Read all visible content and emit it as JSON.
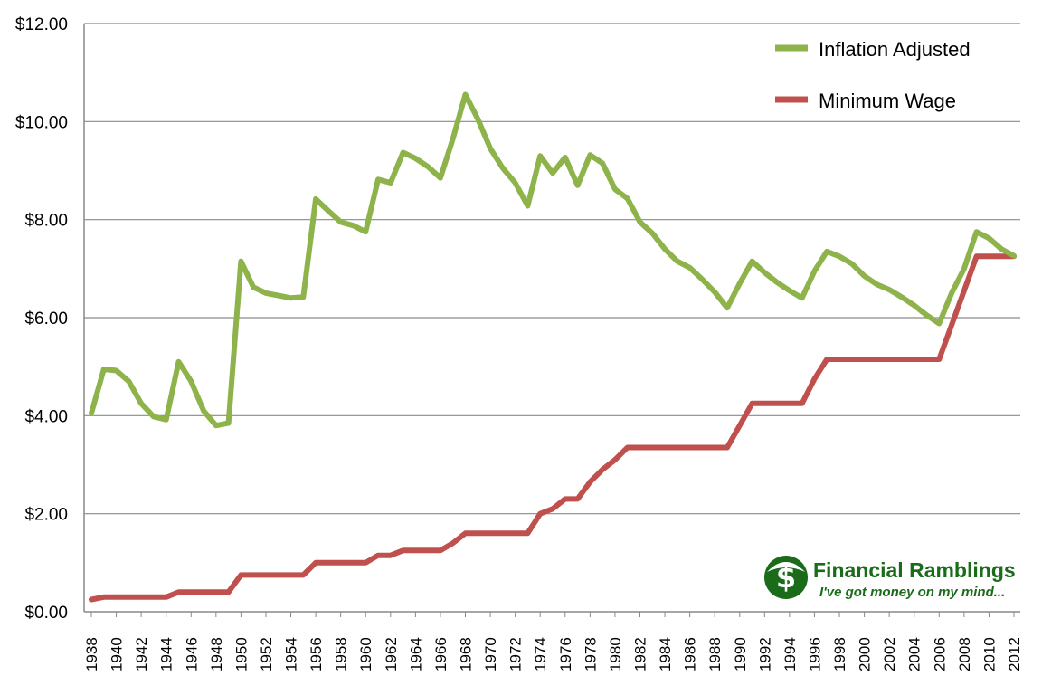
{
  "chart_data": {
    "type": "line",
    "title": "",
    "xlabel": "",
    "ylabel": "",
    "ylim": [
      0,
      12
    ],
    "yticks": [
      "$0.00",
      "$2.00",
      "$4.00",
      "$6.00",
      "$8.00",
      "$10.00",
      "$12.00"
    ],
    "ytick_values": [
      0,
      2,
      4,
      6,
      8,
      10,
      12
    ],
    "xticks": [
      "1938",
      "1940",
      "1942",
      "1944",
      "1946",
      "1948",
      "1950",
      "1952",
      "1954",
      "1956",
      "1958",
      "1960",
      "1962",
      "1964",
      "1966",
      "1968",
      "1970",
      "1972",
      "1974",
      "1976",
      "1978",
      "1980",
      "1982",
      "1984",
      "1986",
      "1988",
      "1990",
      "1992",
      "1994",
      "1996",
      "1998",
      "2000",
      "2002",
      "2004",
      "2006",
      "2008",
      "2010",
      "2012"
    ],
    "legend_position": "top-right",
    "x": [
      1938,
      1939,
      1940,
      1941,
      1942,
      1943,
      1944,
      1945,
      1946,
      1947,
      1948,
      1949,
      1950,
      1951,
      1952,
      1953,
      1954,
      1955,
      1956,
      1957,
      1958,
      1959,
      1960,
      1961,
      1962,
      1963,
      1964,
      1965,
      1966,
      1967,
      1968,
      1969,
      1970,
      1971,
      1972,
      1973,
      1974,
      1975,
      1976,
      1977,
      1978,
      1979,
      1980,
      1981,
      1982,
      1983,
      1984,
      1985,
      1986,
      1987,
      1988,
      1989,
      1990,
      1991,
      1992,
      1993,
      1994,
      1995,
      1996,
      1997,
      1998,
      1999,
      2000,
      2001,
      2002,
      2003,
      2004,
      2005,
      2006,
      2007,
      2008,
      2009,
      2010,
      2011,
      2012
    ],
    "series": [
      {
        "name": "Inflation Adjusted",
        "color": "#8db34a",
        "values": [
          4.05,
          4.95,
          4.92,
          4.7,
          4.25,
          3.98,
          3.92,
          5.1,
          4.7,
          4.1,
          3.8,
          3.85,
          7.15,
          6.62,
          6.5,
          6.45,
          6.4,
          6.42,
          8.42,
          8.18,
          7.95,
          7.88,
          7.75,
          8.82,
          8.75,
          9.37,
          9.25,
          9.08,
          8.85,
          9.65,
          10.55,
          10.05,
          9.45,
          9.05,
          8.75,
          8.28,
          9.3,
          8.95,
          9.27,
          8.7,
          9.32,
          9.15,
          8.62,
          8.43,
          7.95,
          7.72,
          7.4,
          7.15,
          7.02,
          6.78,
          6.52,
          6.2,
          6.7,
          7.15,
          6.92,
          6.72,
          6.55,
          6.4,
          6.95,
          7.35,
          7.25,
          7.1,
          6.85,
          6.68,
          6.57,
          6.42,
          6.25,
          6.05,
          5.88,
          6.5,
          7.0,
          7.75,
          7.62,
          7.4,
          7.26
        ]
      },
      {
        "name": "Minimum Wage",
        "color": "#c0504d",
        "values": [
          0.25,
          0.3,
          0.3,
          0.3,
          0.3,
          0.3,
          0.3,
          0.4,
          0.4,
          0.4,
          0.4,
          0.4,
          0.75,
          0.75,
          0.75,
          0.75,
          0.75,
          0.75,
          1.0,
          1.0,
          1.0,
          1.0,
          1.0,
          1.15,
          1.15,
          1.25,
          1.25,
          1.25,
          1.25,
          1.4,
          1.6,
          1.6,
          1.6,
          1.6,
          1.6,
          1.6,
          2.0,
          2.1,
          2.3,
          2.3,
          2.65,
          2.9,
          3.1,
          3.35,
          3.35,
          3.35,
          3.35,
          3.35,
          3.35,
          3.35,
          3.35,
          3.35,
          3.8,
          4.25,
          4.25,
          4.25,
          4.25,
          4.25,
          4.75,
          5.15,
          5.15,
          5.15,
          5.15,
          5.15,
          5.15,
          5.15,
          5.15,
          5.15,
          5.15,
          5.85,
          6.55,
          7.25,
          7.25,
          7.25,
          7.25
        ]
      }
    ]
  },
  "branding": {
    "name": "Financial Ramblings",
    "tagline": "I've got money on my mind...",
    "color": "#1a6b1a"
  }
}
